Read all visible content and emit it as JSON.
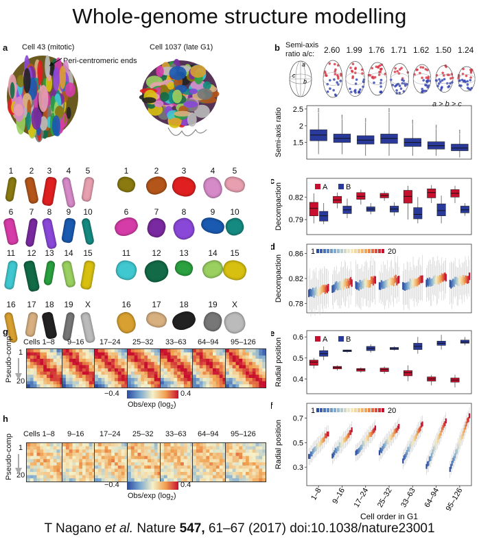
{
  "title": "Whole-genome structure modelling",
  "panel_a": {
    "label": "a",
    "cell_mitotic": "Cell 43 (mitotic)",
    "cell_g1": "Cell 1037 (late G1)",
    "annotation": "Peri-centromeric ends",
    "chromosomes": [
      "1",
      "2",
      "3",
      "4",
      "5",
      "6",
      "7",
      "8",
      "9",
      "10",
      "11",
      "12",
      "13",
      "14",
      "15",
      "16",
      "17",
      "18",
      "19",
      "X"
    ],
    "chrom_colors": [
      "#8a7a10",
      "#b4561a",
      "#e02020",
      "#d68ac8",
      "#e8a0b0",
      "#d63ca8",
      "#7a2aa0",
      "#8a48d8",
      "#1a5ab0",
      "#158a80",
      "#40c8d0",
      "#126a46",
      "#2aa040",
      "#9ad060",
      "#d8c010",
      "#d8a030",
      "#d8b080",
      "#222222",
      "#777777",
      "#bbbbbb"
    ]
  },
  "panel_b": {
    "label": "b",
    "axis_label_line1": "Semi-axis",
    "axis_label_line2": "ratio a/c:",
    "ellipsoid_labels": [
      "a",
      "c",
      "b"
    ],
    "ratios": [
      "2.60",
      "1.99",
      "1.76",
      "1.71",
      "1.62",
      "1.50",
      "1.24"
    ],
    "inequality": "a > b > c"
  },
  "panel_g": {
    "label": "g",
    "ylabel": "Pseudo-comp",
    "tick_top": "1",
    "tick_bottom": "20",
    "groups": [
      "Cells 1–8",
      "9–16",
      "17–24",
      "25–32",
      "33–63",
      "64–94",
      "95–126"
    ],
    "cbar_min": "−0.4",
    "cbar_max": "0.4",
    "cbar_label": "Obs/exp (log",
    "cbar_sub": "2",
    "cbar_end": ")"
  },
  "panel_h": {
    "label": "h",
    "ylabel": "Pseudo-comp",
    "tick_top": "1",
    "tick_bottom": "20",
    "groups": [
      "Cells 1–8",
      "9–16",
      "17–24",
      "25–32",
      "33–63",
      "64–94",
      "95–126"
    ],
    "cbar_min": "−0.4",
    "cbar_max": "0.4",
    "cbar_label": "Obs/exp (log",
    "cbar_sub": "2",
    "cbar_end": ")"
  },
  "colors": {
    "A": "#c8102e",
    "B": "#2a3a9a"
  },
  "xlabel": "Cell order in G1",
  "chart_data": [
    {
      "id": "semi-axis",
      "type": "box",
      "title": "",
      "ylabel": "Semi-axis ratio",
      "ylim": [
        1.0,
        2.6
      ],
      "yticks": [
        1.5,
        2.0,
        2.5
      ],
      "categories": [
        "1–8",
        "9–16",
        "17–24",
        "25–32",
        "33–63",
        "64–94",
        "95–126"
      ],
      "series": [
        {
          "name": "",
          "color": "#2a3a9a",
          "boxes": [
            [
              1.15,
              1.55,
              1.72,
              1.88,
              2.4
            ],
            [
              1.15,
              1.5,
              1.62,
              1.75,
              2.2
            ],
            [
              1.1,
              1.45,
              1.57,
              1.7,
              2.1
            ],
            [
              1.1,
              1.47,
              1.62,
              1.75,
              2.4
            ],
            [
              1.1,
              1.38,
              1.5,
              1.62,
              2.05
            ],
            [
              1.1,
              1.3,
              1.4,
              1.52,
              1.9
            ],
            [
              1.05,
              1.25,
              1.33,
              1.45,
              1.75
            ]
          ]
        }
      ]
    },
    {
      "id": "decompaction",
      "type": "box",
      "label": "c",
      "ylabel": "Decompaction",
      "ylim": [
        0.77,
        0.845
      ],
      "yticks": [
        0.79,
        0.82
      ],
      "categories": [
        "1–8",
        "9–16",
        "17–24",
        "25–32",
        "33–63",
        "64–94",
        "95–126"
      ],
      "legend": [
        "A",
        "B"
      ],
      "series": [
        {
          "name": "A",
          "color": "#c8102e",
          "boxes": [
            [
              0.785,
              0.795,
              0.805,
              0.813,
              0.825
            ],
            [
              0.805,
              0.812,
              0.816,
              0.821,
              0.826
            ],
            [
              0.81,
              0.817,
              0.821,
              0.826,
              0.83
            ],
            [
              0.815,
              0.819,
              0.822,
              0.825,
              0.828
            ],
            [
              0.79,
              0.812,
              0.821,
              0.829,
              0.835
            ],
            [
              0.812,
              0.819,
              0.826,
              0.831,
              0.836
            ],
            [
              0.812,
              0.82,
              0.825,
              0.83,
              0.835
            ]
          ]
        },
        {
          "name": "B",
          "color": "#2a3a9a",
          "boxes": [
            [
              0.784,
              0.788,
              0.795,
              0.801,
              0.812
            ],
            [
              0.792,
              0.798,
              0.803,
              0.808,
              0.818
            ],
            [
              0.797,
              0.801,
              0.804,
              0.807,
              0.812
            ],
            [
              0.795,
              0.8,
              0.804,
              0.808,
              0.813
            ],
            [
              0.785,
              0.791,
              0.797,
              0.806,
              0.82
            ],
            [
              0.785,
              0.795,
              0.802,
              0.811,
              0.822
            ],
            [
              0.795,
              0.799,
              0.803,
              0.808,
              0.812
            ]
          ]
        }
      ]
    },
    {
      "id": "decompaction-pc",
      "type": "box",
      "label": "d",
      "ylabel": "Decompaction",
      "ylim": [
        0.765,
        0.875
      ],
      "yticks": [
        0.78,
        0.82,
        0.86
      ],
      "scale_start": "1",
      "scale_end": "20",
      "categories": [
        "1–8",
        "9–16",
        "17–24",
        "25–32",
        "33–63",
        "64–94",
        "95–126"
      ],
      "series": [
        {
          "name": "pseudo-compartments 1–20",
          "medians_by_group": [
            0.8,
            0.81,
            0.812,
            0.814,
            0.812,
            0.818,
            0.816
          ]
        }
      ]
    },
    {
      "id": "radial-position",
      "type": "box",
      "label": "e",
      "ylabel": "Radial position",
      "ylim": [
        0.33,
        0.63
      ],
      "yticks": [
        0.4,
        0.5,
        0.6
      ],
      "categories": [
        "1–8",
        "9–16",
        "17–24",
        "25–32",
        "33–63",
        "64–94",
        "95–126"
      ],
      "legend": [
        "A",
        "B"
      ],
      "series": [
        {
          "name": "A",
          "color": "#c8102e",
          "boxes": [
            [
              0.45,
              0.465,
              0.48,
              0.49,
              0.5
            ],
            [
              0.44,
              0.448,
              0.455,
              0.46,
              0.465
            ],
            [
              0.43,
              0.437,
              0.445,
              0.45,
              0.455
            ],
            [
              0.425,
              0.435,
              0.445,
              0.452,
              0.46
            ],
            [
              0.39,
              0.415,
              0.43,
              0.44,
              0.465
            ],
            [
              0.37,
              0.39,
              0.4,
              0.41,
              0.42
            ],
            [
              0.36,
              0.385,
              0.395,
              0.405,
              0.42
            ]
          ]
        },
        {
          "name": "B",
          "color": "#2a3a9a",
          "boxes": [
            [
              0.49,
              0.508,
              0.52,
              0.535,
              0.555
            ],
            [
              0.525,
              0.53,
              0.535,
              0.538,
              0.54
            ],
            [
              0.525,
              0.535,
              0.545,
              0.555,
              0.565
            ],
            [
              0.535,
              0.54,
              0.545,
              0.55,
              0.555
            ],
            [
              0.52,
              0.54,
              0.555,
              0.57,
              0.6
            ],
            [
              0.54,
              0.56,
              0.57,
              0.58,
              0.61
            ],
            [
              0.56,
              0.57,
              0.575,
              0.585,
              0.6
            ]
          ]
        }
      ]
    },
    {
      "id": "radial-position-pc",
      "type": "box",
      "label": "f",
      "ylabel": "Radial position",
      "ylim": [
        0.15,
        0.82
      ],
      "yticks": [
        0.3,
        0.5,
        0.7
      ],
      "scale_start": "1",
      "scale_end": "20",
      "categories": [
        "1–8",
        "9–16",
        "17–24",
        "25–32",
        "33–63",
        "64–94",
        "95–126"
      ],
      "series": [
        {
          "name": "pseudo-compartments 1–20",
          "ranges_by_group": [
            [
              0.38,
              0.58
            ],
            [
              0.4,
              0.6
            ],
            [
              0.41,
              0.62
            ],
            [
              0.42,
              0.63
            ],
            [
              0.36,
              0.65
            ],
            [
              0.3,
              0.68
            ],
            [
              0.28,
              0.72
            ]
          ]
        }
      ]
    }
  ],
  "footer": {
    "prefix": "T Nagano ",
    "etal": "et al.",
    "journal": " Nature ",
    "volume": "547,",
    "rest": " 61–67 (2017) doi:10.1038/nature23001"
  }
}
